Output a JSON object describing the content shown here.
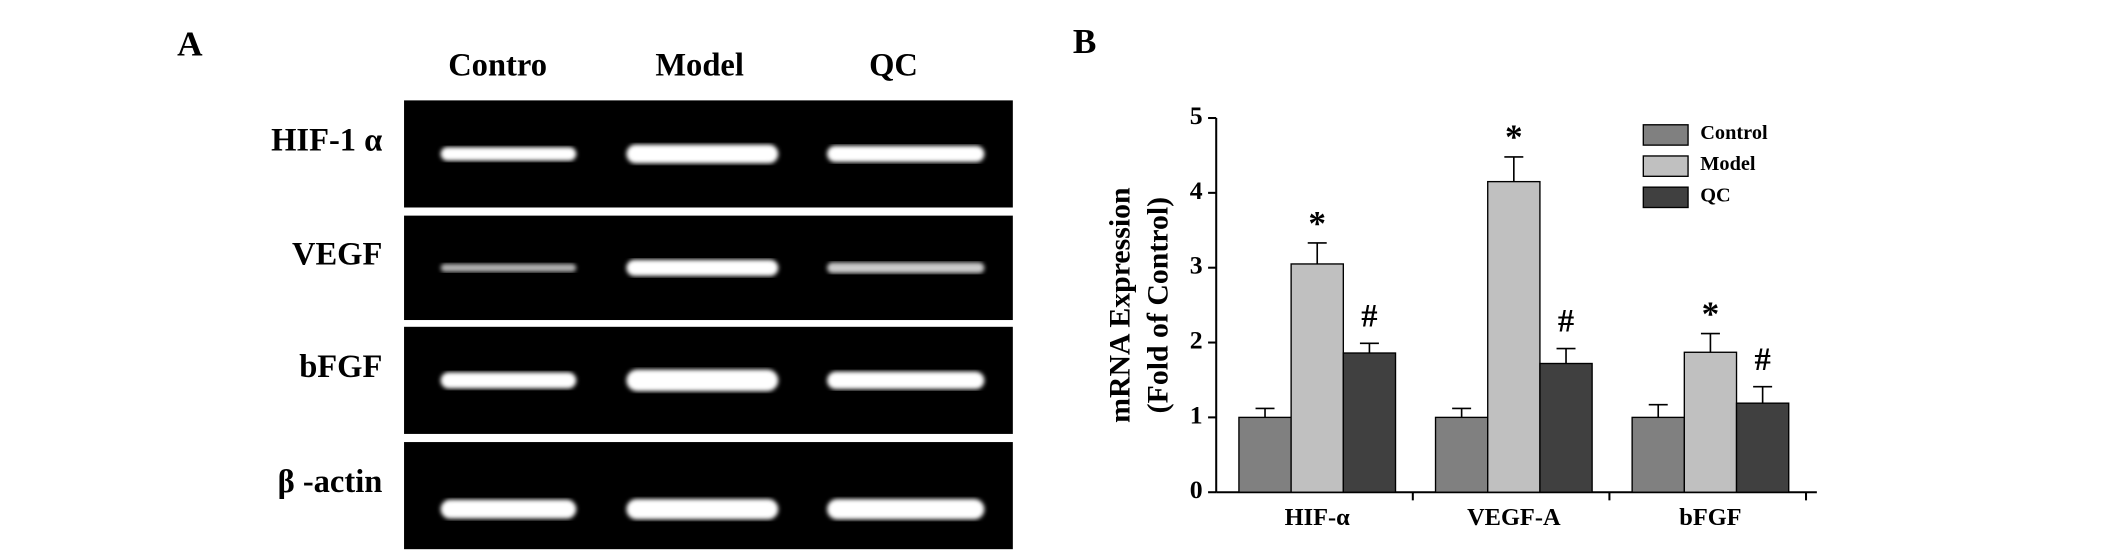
{
  "panel_a": {
    "label": "A",
    "columns": [
      "Contro",
      "Model",
      "QC"
    ],
    "rows": [
      "HIF-1 α",
      "VEGF",
      "bFGF",
      "β -actin"
    ]
  },
  "panel_b": {
    "label": "B"
  },
  "chart_data": {
    "type": "bar",
    "ylabel": [
      "mRNA Expression",
      "(Fold of Control)"
    ],
    "categories": [
      "HIF-α",
      "VEGF-A",
      "bFGF"
    ],
    "series": [
      {
        "name": "Control",
        "color": "#808080",
        "values": [
          1,
          1,
          1
        ],
        "errors": [
          0.12,
          0.12,
          0.17
        ]
      },
      {
        "name": "Model",
        "color": "#c0c0c0",
        "values": [
          3.05,
          4.15,
          1.87
        ],
        "errors": [
          0.28,
          0.33,
          0.25
        ],
        "markers": [
          "*",
          "*",
          "*"
        ]
      },
      {
        "name": "QC",
        "color": "#404040",
        "values": [
          1.86,
          1.72,
          1.19
        ],
        "errors": [
          0.13,
          0.2,
          0.22
        ],
        "markers": [
          "#",
          "#",
          "#"
        ]
      }
    ],
    "ylim": [
      0,
      5
    ],
    "yticks": [
      0,
      1,
      2,
      3,
      4,
      5
    ],
    "legend": "upper right"
  }
}
